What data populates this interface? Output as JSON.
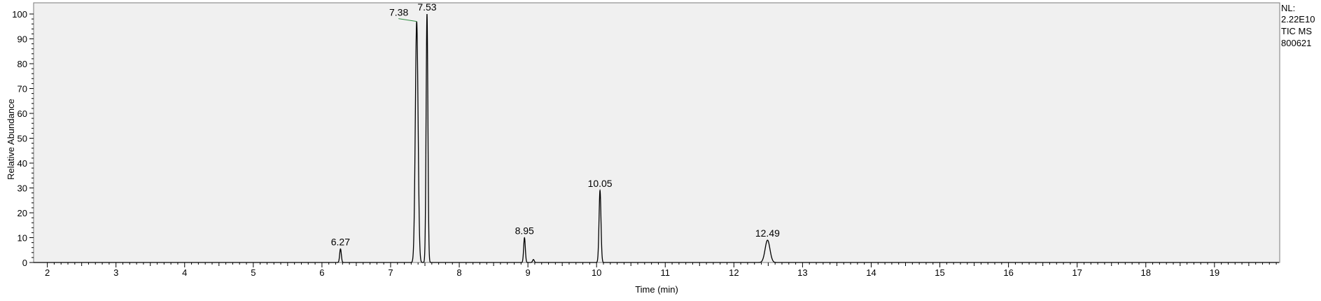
{
  "chart_data": {
    "type": "line",
    "title": "",
    "xlabel": "Time (min)",
    "ylabel": "Relative Abundance",
    "xlim": [
      1.8,
      19.95
    ],
    "ylim": [
      0,
      100
    ],
    "x_ticks": [
      2,
      3,
      4,
      5,
      6,
      7,
      8,
      9,
      10,
      11,
      12,
      13,
      14,
      15,
      16,
      17,
      18,
      19
    ],
    "y_ticks": [
      0,
      10,
      20,
      30,
      40,
      50,
      60,
      70,
      80,
      90,
      100
    ],
    "grid": false,
    "info": [
      "NL:",
      "2.22E10",
      "TIC  MS",
      "800621"
    ],
    "peaks": [
      {
        "rt": 6.27,
        "height": 5.5,
        "width": 0.012,
        "label": "6.27"
      },
      {
        "rt": 7.38,
        "height": 97,
        "width": 0.02,
        "label": "7.38"
      },
      {
        "rt": 7.53,
        "height": 100,
        "width": 0.013,
        "label": "7.53"
      },
      {
        "rt": 8.95,
        "height": 10,
        "width": 0.012,
        "label": "8.95"
      },
      {
        "rt": 9.08,
        "height": 1.2,
        "width": 0.012,
        "label": ""
      },
      {
        "rt": 10.05,
        "height": 29,
        "width": 0.014,
        "label": "10.05"
      },
      {
        "rt": 12.49,
        "height": 9,
        "width": 0.035,
        "label": "12.49"
      }
    ]
  }
}
